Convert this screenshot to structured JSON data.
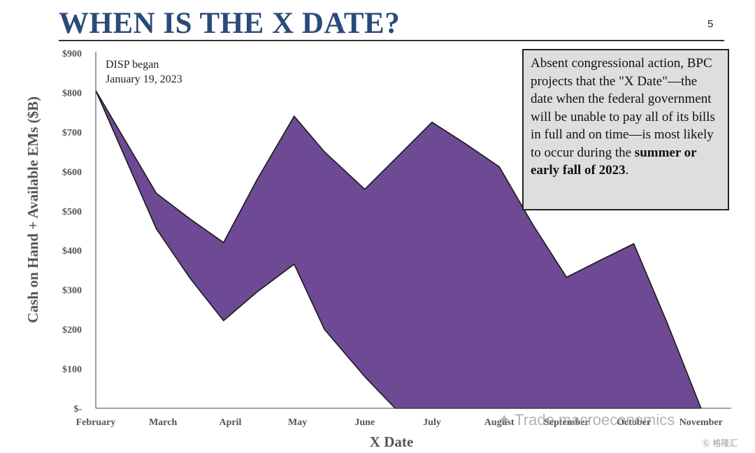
{
  "slide": {
    "title": "WHEN IS THE X DATE?",
    "page_number": "5"
  },
  "callout": {
    "text_plain": "Absent congressional action, BPC projects that the \"X Date\"—the date when the federal government will be unable to pay all of its bills in full and on time—is most likely to occur during the ",
    "text_bold": "summer or early fall of 2023",
    "text_end": "."
  },
  "watermark": {
    "text": "Trade macroeconomics",
    "corner": "格隆汇"
  },
  "colors": {
    "area_fill": "#6d4a93",
    "title": "#2a4a7a",
    "callout_bg": "#dedede"
  },
  "chart_data": {
    "type": "area",
    "xlabel": "X Date",
    "ylabel": "Cash on Hand + Available EMs ($B)",
    "categories": [
      "February",
      "March",
      "April",
      "May",
      "June",
      "July",
      "August",
      "September",
      "October",
      "November"
    ],
    "ylim": [
      0,
      900
    ],
    "yticks": [
      "$-",
      "$100",
      "$200",
      "$300",
      "$400",
      "$500",
      "$600",
      "$700",
      "$800",
      "$900"
    ],
    "annotation": {
      "line1": "DISP began",
      "line2": "January 19, 2023"
    },
    "series": [
      {
        "x": [
          0,
          0.9,
          1.4,
          1.9,
          2.4,
          2.95,
          3.4,
          4.0,
          4.5,
          5.0,
          5.5,
          6.0,
          6.5,
          7.0,
          7.5,
          8.0,
          8.5,
          9.0
        ],
        "values": [
          805,
          545,
          480,
          420,
          580,
          740,
          650,
          555,
          640,
          725,
          670,
          612,
          465,
          332,
          375,
          417,
          215,
          0
        ]
      },
      {
        "x": [
          0,
          0.9,
          1.4,
          1.9,
          2.4,
          2.95,
          3.4,
          4.0,
          4.45,
          9.0
        ],
        "values": [
          805,
          455,
          330,
          222,
          295,
          365,
          200,
          80,
          0,
          0
        ]
      }
    ],
    "grid": false,
    "legend": "none"
  }
}
